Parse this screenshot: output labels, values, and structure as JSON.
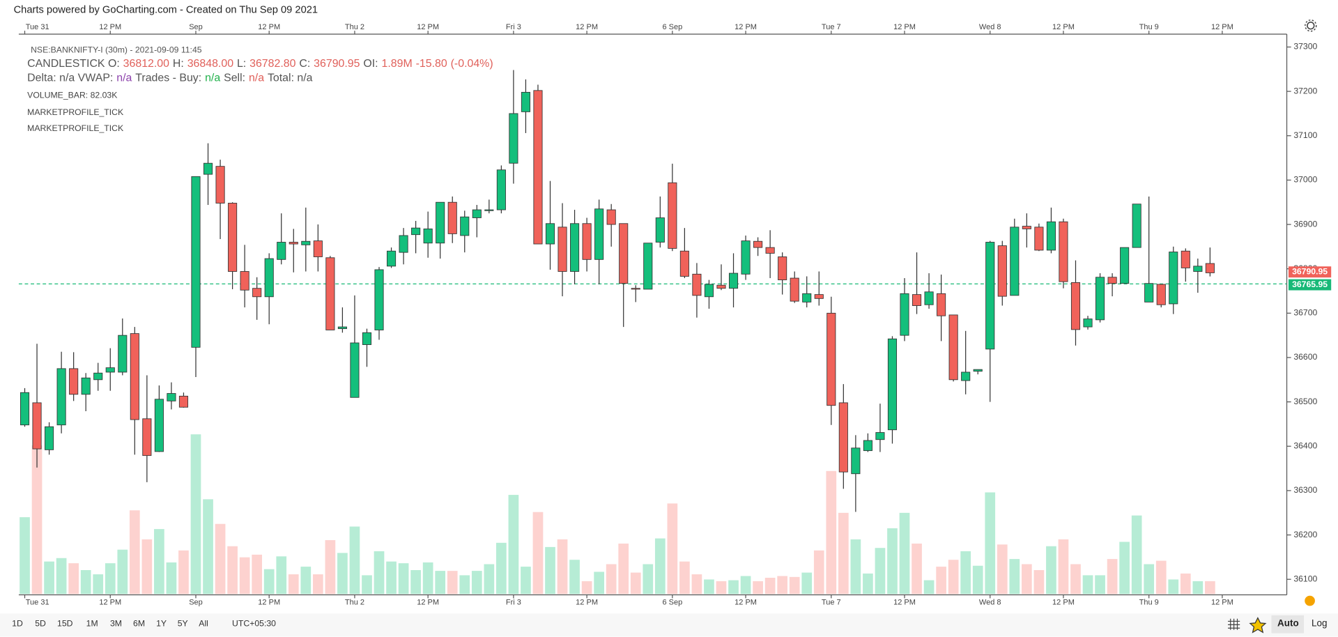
{
  "header": {
    "credit": "Charts powered by GoCharting.com - Created on Thu Sep 09 2021"
  },
  "legend": {
    "symbol": "NSE:BANKNIFTY-I (30m) - 2021-09-09 11:45",
    "ohlc": [
      {
        "text": "CANDLESTICK O:",
        "color": "#555555"
      },
      {
        "text": "36812.00",
        "color": "#e0605a"
      },
      {
        "text": "H:",
        "color": "#555555"
      },
      {
        "text": "36848.00",
        "color": "#e0605a"
      },
      {
        "text": "L:",
        "color": "#555555"
      },
      {
        "text": "36782.80",
        "color": "#e0605a"
      },
      {
        "text": "C:",
        "color": "#555555"
      },
      {
        "text": "36790.95",
        "color": "#e0605a"
      },
      {
        "text": "OI:",
        "color": "#555555"
      },
      {
        "text": "1.89M",
        "color": "#e0605a"
      },
      {
        "text": "-15.80",
        "color": "#e0605a"
      },
      {
        "text": "(-0.04%)",
        "color": "#e0605a"
      }
    ],
    "flow": [
      {
        "text": "Delta: n/a VWAP:",
        "color": "#555555"
      },
      {
        "text": "n/a",
        "color": "#8e44ad"
      },
      {
        "text": "Trades - Buy:",
        "color": "#555555"
      },
      {
        "text": "n/a",
        "color": "#22b14c"
      },
      {
        "text": "Sell:",
        "color": "#555555"
      },
      {
        "text": "n/a",
        "color": "#e0605a"
      },
      {
        "text": "Total: n/a",
        "color": "#555555"
      }
    ],
    "volume": "VOLUME_BAR: 82.03K",
    "studies": [
      "MARKETPROFILE_TICK",
      "MARKETPROFILE_TICK"
    ]
  },
  "chart_data": {
    "type": "candlestick",
    "up_color": "#14bf7c",
    "down_color": "#f0625a",
    "up_volume_color": "#b6ecd5",
    "down_volume_color": "#fdd2cf",
    "open": [
      36448,
      36498,
      36392,
      36448,
      36575,
      36517,
      36550,
      36567,
      36567,
      36654,
      36462,
      36388,
      36502,
      36513,
      36623,
      37013,
      37031,
      36948,
      36794,
      36756,
      36737,
      36821,
      36860,
      36854,
      36863,
      36825,
      36665,
      36510,
      36629,
      36662,
      36806,
      36837,
      36877,
      36858,
      36858,
      36950,
      36875,
      36915,
      36931,
      36933,
      37038,
      37154,
      37202,
      36856,
      36894,
      36794,
      36902,
      36821,
      36933,
      36902,
      36756,
      36754,
      36860,
      36994,
      36840,
      36788,
      36737,
      36763,
      36756,
      36788,
      36862,
      36848,
      36827,
      36779,
      36725,
      36742,
      36700,
      36498,
      36338,
      36390,
      36415,
      36437,
      36650,
      36742,
      36719,
      36744,
      36696,
      36548,
      36569,
      36619,
      36852,
      36740,
      36896,
      36894,
      36842,
      36906,
      36769,
      36669,
      36685,
      36781,
      36767,
      36848,
      36725,
      36765,
      36721,
      36840,
      36794,
      36812
    ],
    "high": [
      36531,
      36631,
      36454,
      36613,
      36612,
      36565,
      36588,
      36621,
      36688,
      36669,
      36560,
      36537,
      36544,
      36521,
      37008,
      37083,
      37046,
      36950,
      36854,
      36781,
      36835,
      36925,
      36890,
      36938,
      36900,
      36829,
      36713,
      36740,
      36665,
      36804,
      36848,
      36892,
      36908,
      36929,
      36950,
      36963,
      36931,
      36944,
      36956,
      37033,
      37248,
      37227,
      37215,
      36998,
      36948,
      36933,
      36915,
      36956,
      36946,
      36902,
      36763,
      36858,
      36963,
      37037,
      36892,
      36813,
      36775,
      36810,
      36835,
      36875,
      36871,
      36887,
      36837,
      36794,
      36783,
      36794,
      36737,
      36540,
      36425,
      36429,
      36496,
      36648,
      36779,
      36837,
      36790,
      36787,
      36696,
      36660,
      36573,
      36863,
      36863,
      36913,
      36925,
      36902,
      36938,
      36913,
      36819,
      36694,
      36790,
      36790,
      36848,
      36946,
      36963,
      36765,
      36850,
      36846,
      36823,
      36848
    ],
    "low": [
      36444,
      36352,
      36381,
      36429,
      36502,
      36479,
      36525,
      36525,
      36560,
      36381,
      36319,
      36387,
      36483,
      36487,
      36556,
      36944,
      36867,
      36754,
      36713,
      36685,
      36675,
      36810,
      36792,
      36794,
      36794,
      36662,
      36656,
      36510,
      36579,
      36640,
      36802,
      36810,
      36835,
      36825,
      36823,
      36858,
      36837,
      36871,
      36925,
      36925,
      36992,
      37106,
      36856,
      36798,
      36738,
      36765,
      36794,
      36765,
      36850,
      36669,
      36725,
      36754,
      36848,
      36840,
      36779,
      36690,
      36710,
      36752,
      36713,
      36775,
      36829,
      36779,
      36742,
      36723,
      36713,
      36717,
      36448,
      36304,
      36252,
      36387,
      36387,
      36406,
      36637,
      36698,
      36710,
      36637,
      36546,
      36517,
      36562,
      36500,
      36717,
      36740,
      36848,
      36840,
      36835,
      36756,
      36627,
      36663,
      36679,
      36738,
      36767,
      36848,
      36725,
      36713,
      36698,
      36771,
      36746,
      36782.8
    ],
    "close": [
      36521,
      36394,
      36444,
      36575,
      36517,
      36554,
      36565,
      36577,
      36650,
      36460,
      36379,
      36506,
      36519,
      36488,
      37008,
      37038,
      36948,
      36794,
      36752,
      36737,
      36823,
      36860,
      36856,
      36862,
      36827,
      36662,
      36669,
      36633,
      36656,
      36798,
      36840,
      36875,
      36892,
      36890,
      36950,
      36879,
      36917,
      36933,
      36933,
      37023,
      37150,
      37198,
      36856,
      36902,
      36794,
      36902,
      36821,
      36935,
      36900,
      36767,
      36754,
      36858,
      36915,
      36846,
      36783,
      36740,
      36765,
      36756,
      36790,
      36863,
      36848,
      36835,
      36775,
      36727,
      36744,
      36733,
      36492,
      36342,
      36396,
      36413,
      36431,
      36642,
      36744,
      36717,
      36748,
      36694,
      36550,
      36567,
      36573,
      36860,
      36738,
      36894,
      36890,
      36842,
      36906,
      36771,
      36663,
      36687,
      36781,
      36767,
      36848,
      36946,
      36767,
      36719,
      36838,
      36802,
      36806,
      36790.95
    ],
    "volume": [
      492,
      952,
      208,
      230,
      197,
      153,
      126,
      197,
      284,
      536,
      350,
      416,
      202,
      279,
      1023,
      607,
      449,
      306,
      235,
      252,
      159,
      241,
      126,
      175,
      126,
      345,
      263,
      432,
      120,
      274,
      208,
      197,
      153,
      202,
      148,
      148,
      120,
      148,
      191,
      328,
      635,
      175,
      525,
      301,
      350,
      219,
      82,
      142,
      191,
      323,
      137,
      191,
      356,
      580,
      208,
      126,
      93,
      82,
      88,
      115,
      82,
      104,
      115,
      109,
      137,
      279,
      788,
      520,
      350,
      131,
      295,
      421,
      520,
      323,
      88,
      175,
      219,
      274,
      181,
      651,
      317,
      224,
      191,
      153,
      306,
      350,
      191,
      120,
      120,
      224,
      334,
      503,
      191,
      213,
      93,
      131,
      82,
      82.03
    ],
    "ylim": [
      36065,
      37329
    ],
    "yticks": [
      36100,
      36200,
      36300,
      36400,
      36500,
      36600,
      36700,
      36800,
      36900,
      37000,
      37100,
      37200,
      37300
    ],
    "xticks": [
      {
        "value": 0,
        "label": "Tue 31"
      },
      {
        "value": 7,
        "label": "12 PM"
      },
      {
        "value": 14,
        "label": "Sep"
      },
      {
        "value": 20,
        "label": "12 PM"
      },
      {
        "value": 27,
        "label": "Thu 2"
      },
      {
        "value": 33,
        "label": "12 PM"
      },
      {
        "value": 40,
        "label": "Fri 3"
      },
      {
        "value": 46,
        "label": "12 PM"
      },
      {
        "value": 53,
        "label": "6 Sep"
      },
      {
        "value": 59,
        "label": "12 PM"
      },
      {
        "value": 66,
        "label": "Tue 7"
      },
      {
        "value": 72,
        "label": "12 PM"
      },
      {
        "value": 79,
        "label": "Wed 8"
      },
      {
        "value": 85,
        "label": "12 PM"
      },
      {
        "value": 92,
        "label": "Thu 9"
      },
      {
        "value": 98,
        "label": "12 PM"
      }
    ],
    "price_tags": [
      {
        "value": 36790.95,
        "color": "#f0625a"
      },
      {
        "value": 36765.95,
        "color": "#18b977",
        "line": true
      }
    ]
  },
  "toolbar": {
    "ranges": [
      "1D",
      "5D",
      "15D",
      "1M",
      "3M",
      "6M",
      "1Y",
      "5Y",
      "All"
    ],
    "timezone": "UTC+05:30",
    "scale_modes": [
      "Auto",
      "Log"
    ]
  }
}
